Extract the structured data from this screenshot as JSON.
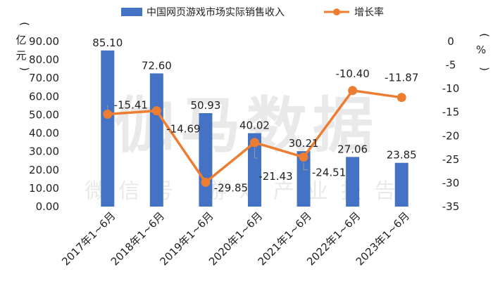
{
  "chart_data": {
    "type": "bar+line",
    "categories": [
      "2017年1~6月",
      "2018年1~6月",
      "2019年1~6月",
      "2020年1~6月",
      "2021年1~6月",
      "2022年1~6月",
      "2023年1~6月"
    ],
    "series": [
      {
        "name": "中国网页游戏市场实际销售收入",
        "type": "bar",
        "axis": "left",
        "values": [
          85.1,
          72.6,
          50.93,
          40.02,
          30.21,
          27.06,
          23.85
        ],
        "labels": [
          "85.10",
          "72.60",
          "50.93",
          "40.02",
          "30.21",
          "27.06",
          "23.85"
        ],
        "color": "#4472c4"
      },
      {
        "name": "增长率",
        "type": "line",
        "axis": "right",
        "values": [
          -15.41,
          -14.69,
          -29.85,
          -21.43,
          -24.51,
          -10.4,
          -11.87
        ],
        "labels": [
          "-15.41",
          "-14.69",
          "-29.85",
          "-21.43",
          "-24.51",
          "-10.40",
          "-11.87"
        ],
        "color": "#ed7d31"
      }
    ],
    "left_axis": {
      "title": "亿元",
      "ylim": [
        0,
        90
      ],
      "ticks": [
        "90.00",
        "80.00",
        "70.00",
        "60.00",
        "50.00",
        "40.00",
        "30.00",
        "20.00",
        "10.00",
        "0.00"
      ]
    },
    "right_axis": {
      "title": "%",
      "ylim": [
        -35,
        0
      ],
      "ticks": [
        "0",
        "-5",
        "-10",
        "-15",
        "-20",
        "-25",
        "-30",
        "-35"
      ]
    },
    "legend": {
      "position": "top"
    },
    "grid": false
  },
  "watermark": {
    "main": "伽马数据",
    "sub": "微信号 游戏产业报告"
  }
}
